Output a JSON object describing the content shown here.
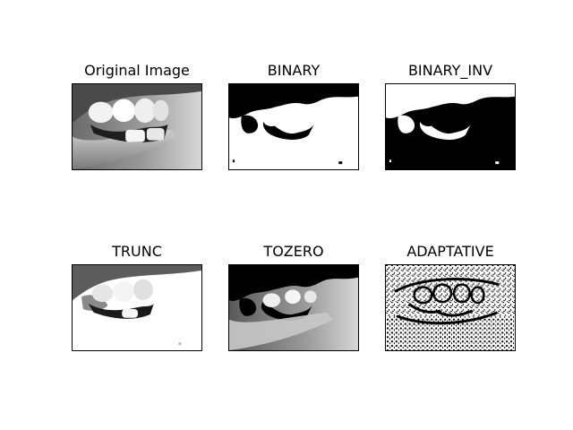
{
  "figure": {
    "panels": [
      {
        "id": "original",
        "title": "Original Image"
      },
      {
        "id": "binary",
        "title": "BINARY"
      },
      {
        "id": "binary_inv",
        "title": "BINARY_INV"
      },
      {
        "id": "trunc",
        "title": "TRUNC"
      },
      {
        "id": "tozero",
        "title": "TOZERO"
      },
      {
        "id": "adaptive",
        "title": "ADAPTATIVE"
      }
    ],
    "subject": "teeth-and-lips-photo"
  }
}
